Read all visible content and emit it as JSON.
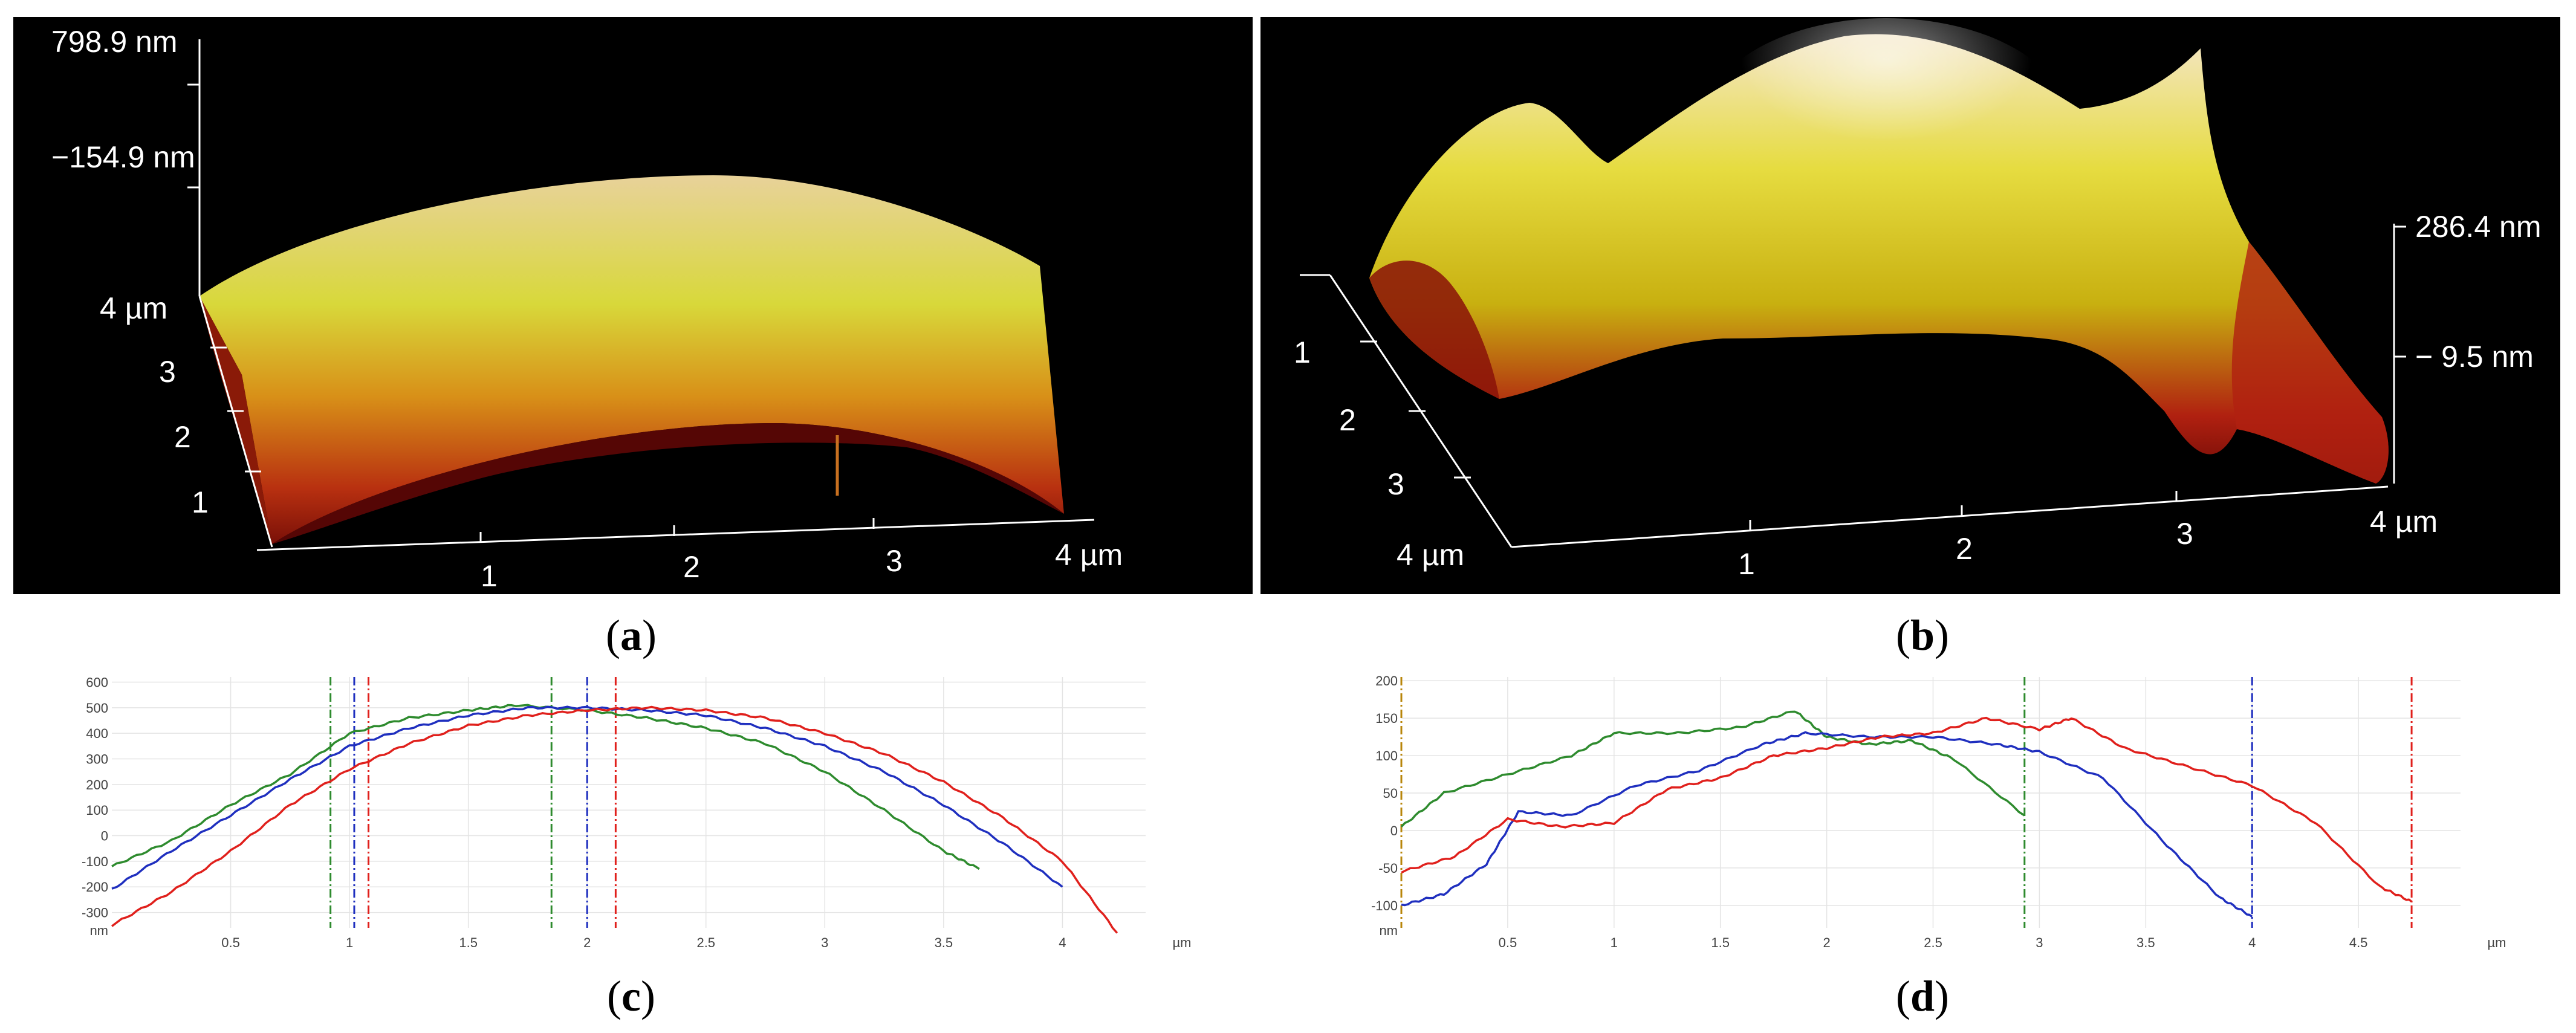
{
  "panels": {
    "a": {
      "caption_open": "(",
      "caption_letter": "a",
      "caption_close": ")",
      "z_max_label": "798.9 nm",
      "z_mid_label": "−154.9 nm",
      "y_ticks": [
        "4 µm",
        "3",
        "2",
        "1"
      ],
      "x_ticks": [
        "1",
        "2",
        "3",
        "4 µm"
      ]
    },
    "b": {
      "caption_open": "(",
      "caption_letter": "b",
      "caption_close": ")",
      "z_max_label": "286.4 nm",
      "z_mid_label": "− 9.5 nm",
      "y_ticks": [
        "1",
        "2",
        "3",
        "4 µm"
      ],
      "x_ticks": [
        "1",
        "2",
        "3",
        "4 µm"
      ]
    },
    "c": {
      "caption_open": "(",
      "caption_letter": "c",
      "caption_close": ")"
    },
    "d": {
      "caption_open": "(",
      "caption_letter": "d",
      "caption_close": ")"
    }
  },
  "colors": {
    "green": "#2e8b2e",
    "blue": "#1f2fbf",
    "red": "#e0201c",
    "black_bg": "#000000"
  },
  "chart_data": [
    {
      "type": "line",
      "panel": "c",
      "title": "",
      "xlabel": "µm",
      "ylabel": "nm",
      "xlim": [
        0,
        4.35
      ],
      "ylim": [
        -360,
        620
      ],
      "x_ticks": [
        0.5,
        1,
        1.5,
        2,
        2.5,
        3,
        3.5,
        4
      ],
      "x_tick_labels": [
        "0.5",
        "1",
        "1.5",
        "2",
        "2.5",
        "3",
        "3.5",
        "4"
      ],
      "y_ticks": [
        600,
        500,
        400,
        300,
        200,
        100,
        0,
        -100,
        -200,
        -300
      ],
      "y_tick_labels": [
        "600",
        "500",
        "400",
        "300",
        "200",
        "100",
        "0",
        "-100",
        "-200",
        "-300"
      ],
      "series": [
        {
          "name": "green",
          "color": "#2e8b2e",
          "x": [
            0,
            0.25,
            0.5,
            0.75,
            1,
            1.25,
            1.5,
            1.7,
            2,
            2.25,
            2.5,
            2.75,
            3,
            3.25,
            3.5,
            3.65
          ],
          "y": [
            -120,
            -20,
            120,
            240,
            400,
            460,
            490,
            510,
            490,
            460,
            420,
            360,
            250,
            100,
            -60,
            -130
          ]
        },
        {
          "name": "blue",
          "color": "#1f2fbf",
          "x": [
            0,
            0.25,
            0.5,
            0.75,
            1,
            1.25,
            1.5,
            1.75,
            2,
            2.25,
            2.5,
            2.75,
            3,
            3.25,
            3.5,
            3.75,
            4.0
          ],
          "y": [
            -210,
            -60,
            80,
            220,
            350,
            420,
            470,
            500,
            500,
            490,
            470,
            420,
            350,
            250,
            120,
            -30,
            -200
          ]
        },
        {
          "name": "red",
          "color": "#e0201c",
          "x": [
            0,
            0.25,
            0.5,
            0.75,
            1,
            1.25,
            1.5,
            1.75,
            2,
            2.25,
            2.5,
            2.75,
            3,
            3.25,
            3.5,
            3.75,
            4.0,
            4.23
          ],
          "y": [
            -350,
            -220,
            -60,
            120,
            260,
            360,
            430,
            470,
            490,
            500,
            490,
            460,
            400,
            320,
            210,
            70,
            -100,
            -380
          ]
        }
      ],
      "markers": [
        {
          "x": 0.92,
          "color": "#2e8b2e"
        },
        {
          "x": 1.02,
          "color": "#1f2fbf"
        },
        {
          "x": 1.08,
          "color": "#e0201c"
        },
        {
          "x": 1.85,
          "color": "#2e8b2e"
        },
        {
          "x": 2.0,
          "color": "#1f2fbf"
        },
        {
          "x": 2.12,
          "color": "#e0201c"
        }
      ]
    },
    {
      "type": "line",
      "panel": "d",
      "title": "",
      "xlabel": "µm",
      "ylabel": "nm",
      "xlim": [
        0,
        4.98
      ],
      "ylim": [
        -130,
        205
      ],
      "x_ticks": [
        0.5,
        1,
        1.5,
        2,
        2.5,
        3,
        3.5,
        4,
        4.5
      ],
      "x_tick_labels": [
        "0.5",
        "1",
        "1.5",
        "2",
        "2.5",
        "3",
        "3.5",
        "4",
        "4.5"
      ],
      "y_ticks": [
        200,
        150,
        100,
        50,
        0,
        -50,
        -100
      ],
      "y_tick_labels": [
        "200",
        "150",
        "100",
        "50",
        "0",
        "-50",
        "-100"
      ],
      "series": [
        {
          "name": "green",
          "color": "#2e8b2e",
          "x": [
            0,
            0.2,
            0.5,
            0.8,
            1.0,
            1.3,
            1.6,
            1.85,
            2.0,
            2.2,
            2.4,
            2.6,
            2.93
          ],
          "y": [
            5,
            50,
            75,
            100,
            130,
            130,
            138,
            160,
            125,
            115,
            120,
            95,
            20
          ]
        },
        {
          "name": "blue",
          "color": "#1f2fbf",
          "x": [
            0,
            0.2,
            0.4,
            0.55,
            0.8,
            1.1,
            1.4,
            1.7,
            1.9,
            2.2,
            2.5,
            2.8,
            3.0,
            3.3,
            3.6,
            3.85,
            4.0
          ],
          "y": [
            -100,
            -85,
            -45,
            25,
            20,
            60,
            80,
            115,
            130,
            125,
            125,
            115,
            105,
            70,
            -20,
            -90,
            -115
          ]
        },
        {
          "name": "red",
          "color": "#e0201c",
          "x": [
            0,
            0.25,
            0.5,
            0.75,
            1,
            1.25,
            1.5,
            1.75,
            2,
            2.25,
            2.5,
            2.75,
            3.0,
            3.15,
            3.4,
            3.7,
            4.0,
            4.3,
            4.6,
            4.75
          ],
          "y": [
            -55,
            -35,
            15,
            5,
            10,
            55,
            70,
            100,
            110,
            125,
            130,
            150,
            135,
            150,
            110,
            85,
            60,
            10,
            -75,
            -95
          ]
        }
      ],
      "markers": [
        {
          "x": 0.0,
          "color": "#b8860b"
        },
        {
          "x": 2.93,
          "color": "#2e8b2e"
        },
        {
          "x": 4.0,
          "color": "#1f2fbf"
        },
        {
          "x": 4.75,
          "color": "#e0201c"
        }
      ]
    }
  ]
}
